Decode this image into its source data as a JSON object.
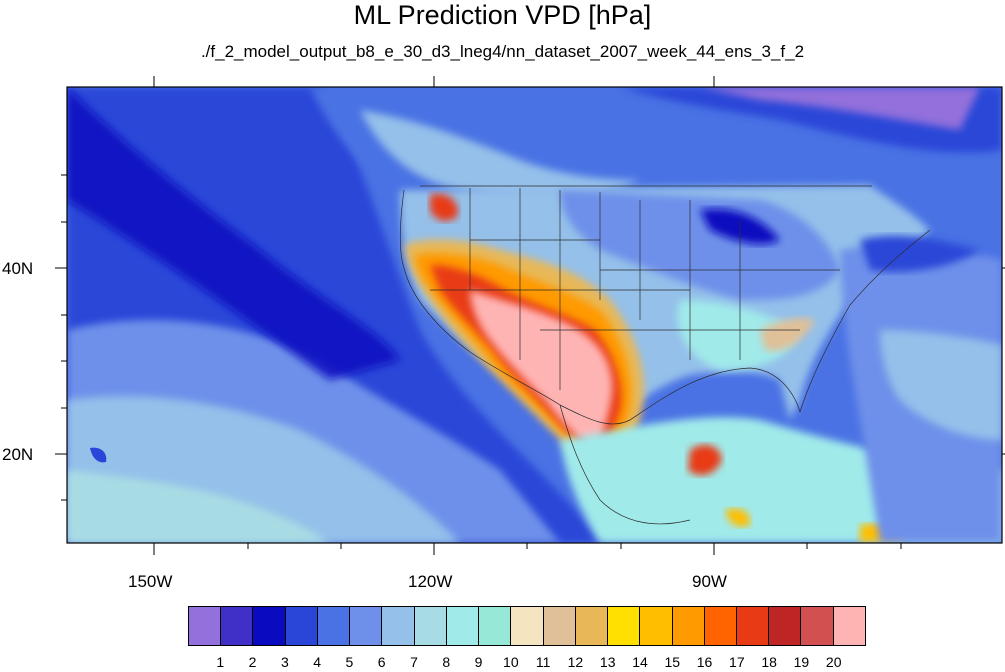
{
  "title": "ML Prediction VPD [hPa]",
  "subtitle": "./f_2_model_output_b8_e_30_d3_lneg4/nn_dataset_2007_week_44_ens_3_f_2",
  "lon_ticks": [
    "150W",
    "120W",
    "90W"
  ],
  "lat_ticks": [
    "40N",
    "20N"
  ],
  "colorbar": {
    "colors": [
      "#9370db",
      "#4030c8",
      "#0a0ac0",
      "#2a46d8",
      "#4a72e4",
      "#6e90ea",
      "#94c0ea",
      "#a8dce4",
      "#a0eaea",
      "#98e8d8",
      "#f4e4c0",
      "#e0c098",
      "#e8b858",
      "#ffe000",
      "#ffbe00",
      "#ff9a00",
      "#ff6400",
      "#e83a14",
      "#be2626",
      "#d25050",
      "#ffb4b4"
    ],
    "labels": [
      "1",
      "2",
      "3",
      "4",
      "5",
      "6",
      "7",
      "8",
      "9",
      "10",
      "11",
      "12",
      "13",
      "14",
      "15",
      "16",
      "17",
      "18",
      "19",
      "20"
    ]
  }
}
